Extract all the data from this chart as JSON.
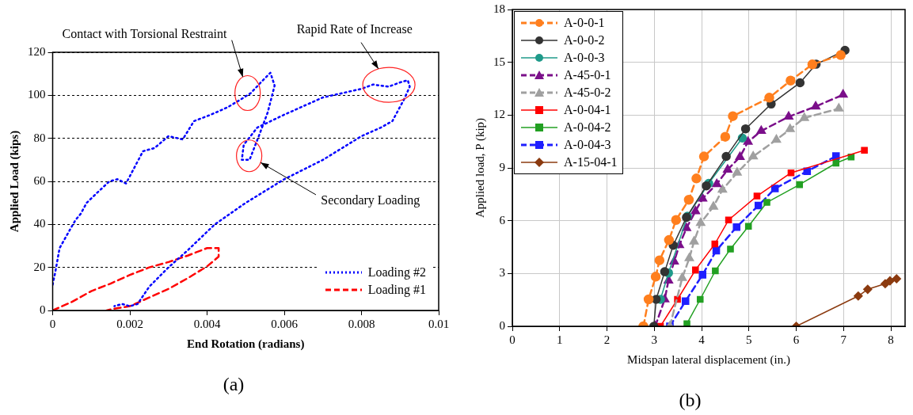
{
  "chart_data": [
    {
      "type": "line",
      "xlabel": "End Rotation (radians)",
      "ylabel": "Applied Load (kips)",
      "xlim": [
        0,
        0.01
      ],
      "ylim": [
        0,
        120
      ],
      "xticks": [
        0,
        0.002,
        0.004,
        0.006,
        0.008,
        0.01
      ],
      "yticks": [
        0,
        20,
        40,
        60,
        80,
        100,
        120
      ],
      "grid": "y",
      "legend": "bottom right",
      "marker": "none",
      "series": [
        {
          "name": "Loading #2",
          "color": "#0000ff",
          "line_style": "dotted",
          "x": [
            0,
            7e-05,
            0.00018,
            0.0004,
            0.00059,
            0.00073,
            0.00088,
            0.00117,
            0.00147,
            0.00168,
            0.0019,
            0.00212,
            0.00234,
            0.00264,
            0.003,
            0.00337,
            0.00366,
            0.0041,
            0.00454,
            0.00491,
            0.00513,
            0.00542,
            0.00564,
            0.00575,
            0.00557,
            0.00535,
            0.0051,
            0.0049,
            0.00495,
            0.0053,
            0.006,
            0.0065,
            0.007,
            0.0075,
            0.008,
            0.0083,
            0.0087,
            0.009,
            0.0092,
            0.00925,
            0.0091,
            0.0088,
            0.0085,
            0.008,
            0.007,
            0.006,
            0.005,
            0.0042,
            0.0035,
            0.003,
            0.0025,
            0.0022,
            0.002,
            0.0018,
            0.0016
          ],
          "values": [
            12,
            18,
            29,
            36,
            42,
            45,
            50,
            55,
            60,
            61,
            59,
            66.5,
            74,
            75.5,
            81,
            79.5,
            88,
            91,
            94.5,
            98.5,
            101,
            106.5,
            110.5,
            104.5,
            92,
            81.5,
            70,
            70,
            77,
            85,
            91,
            95,
            99,
            101,
            103,
            105,
            104,
            106,
            107,
            104,
            98,
            88,
            85,
            81,
            70,
            61,
            50,
            40,
            28,
            20,
            11,
            3,
            2,
            3,
            2
          ]
        },
        {
          "name": "Loading #1",
          "color": "#ff0000",
          "line_style": "dashed",
          "x": [
            0,
            0.0005,
            0.001,
            0.0015,
            0.002,
            0.0025,
            0.003,
            0.0035,
            0.004,
            0.0043,
            0.0043,
            0.004,
            0.0035,
            0.003,
            0.0025,
            0.002,
            0.0015,
            0.0014
          ],
          "values": [
            0,
            4,
            9,
            12.5,
            16.5,
            20,
            22.5,
            25.5,
            29,
            29,
            25,
            20.5,
            15,
            10,
            6,
            2,
            0.5,
            0
          ]
        }
      ],
      "annotations": [
        "Contact with Torsional Restraint",
        "Rapid Rate of Increase",
        "Secondary Loading",
        "(a)"
      ]
    },
    {
      "type": "line",
      "xlabel": "Midspan lateral displacement (in.)",
      "ylabel": "Applied load, P (kip)",
      "xlim": [
        0,
        8.3
      ],
      "ylim": [
        0,
        18
      ],
      "xticks": [
        0,
        1,
        2,
        3,
        4,
        5,
        6,
        7,
        8
      ],
      "yticks": [
        0,
        3,
        6,
        9,
        12,
        15,
        18
      ],
      "grid": true,
      "legend": "top left",
      "series": [
        {
          "name": "A-0-0-1",
          "color": "#ff7f1e",
          "line_style": "dashed",
          "marker": "circle",
          "x": [
            2.77,
            2.88,
            3.03,
            3.11,
            3.31,
            3.46,
            3.73,
            3.89,
            4.05,
            4.5,
            4.66,
            5.43,
            5.88,
            6.34,
            6.94
          ],
          "values": [
            0,
            1.53,
            2.82,
            3.75,
            4.9,
            6.04,
            7.19,
            8.4,
            9.65,
            10.77,
            11.94,
            12.99,
            13.96,
            14.88,
            15.41
          ]
        },
        {
          "name": "A-0-0-2",
          "color": "#333333",
          "line_style": "solid",
          "marker": "circle",
          "x": [
            2.99,
            3.04,
            3.22,
            3.4,
            3.68,
            4.1,
            4.52,
            4.93,
            5.47,
            6.08,
            6.42,
            7.03
          ],
          "values": [
            0,
            1.53,
            3.1,
            4.6,
            6.19,
            7.98,
            9.65,
            11.22,
            12.63,
            13.84,
            14.89,
            15.68
          ]
        },
        {
          "name": "A-0-0-3",
          "color": "#1f9a8a",
          "line_style": "solid",
          "marker": "circle",
          "x": [
            3.13,
            3.3,
            3.7,
            4.15,
            4.86
          ],
          "values": [
            1.53,
            3.03,
            6.25,
            8.12,
            10.7
          ]
        },
        {
          "name": "A-45-0-1",
          "color": "#7b0f8a",
          "line_style": "dashed",
          "marker": "triangle",
          "x": [
            3.02,
            3.22,
            3.3,
            3.42,
            3.53,
            3.68,
            3.87,
            4.02,
            4.32,
            4.55,
            4.81,
            4.98,
            5.26,
            5.84,
            6.41,
            6.99
          ],
          "values": [
            0,
            1.53,
            2.6,
            3.68,
            4.61,
            5.58,
            6.54,
            7.26,
            8.08,
            8.9,
            9.62,
            10.48,
            11.1,
            11.91,
            12.49,
            13.16
          ]
        },
        {
          "name": "A-45-0-2",
          "color": "#a0a0a0",
          "line_style": "dashed",
          "marker": "triangle",
          "x": [
            3.33,
            3.59,
            3.74,
            3.84,
            3.98,
            4.25,
            4.44,
            4.75,
            5.09,
            5.58,
            5.87,
            6.17,
            6.9
          ],
          "values": [
            0,
            2.75,
            3.87,
            4.82,
            5.87,
            6.8,
            7.76,
            8.73,
            9.65,
            10.6,
            11.2,
            11.84,
            12.37
          ]
        },
        {
          "name": "A-0-04-1",
          "color": "#ff0000",
          "line_style": "solid",
          "marker": "square",
          "x": [
            3.13,
            3.49,
            3.87,
            4.28,
            4.57,
            5.17,
            5.89,
            7.44
          ],
          "values": [
            0,
            1.53,
            3.2,
            4.68,
            6.04,
            7.4,
            8.72,
            10
          ]
        },
        {
          "name": "A-0-04-2",
          "color": "#22a022",
          "line_style": "solid",
          "marker": "square",
          "x": [
            3.69,
            3.97,
            4.29,
            4.61,
            4.99,
            5.38,
            6.07,
            6.84,
            7.16
          ],
          "values": [
            0.15,
            1.53,
            3.15,
            4.39,
            5.68,
            7.04,
            8.05,
            9.27,
            9.62
          ]
        },
        {
          "name": "A-0-04-3",
          "color": "#1f1fff",
          "line_style": "dashed",
          "marker": "square",
          "x": [
            3.33,
            3.66,
            4.02,
            4.31,
            4.74,
            5.2,
            5.55,
            6.23,
            6.84
          ],
          "values": [
            0,
            1.43,
            2.93,
            4.3,
            5.64,
            6.86,
            7.83,
            8.81,
            9.67
          ]
        },
        {
          "name": "A-15-04-1",
          "color": "#8b3a0f",
          "line_style": "solid",
          "marker": "diamond",
          "x": [
            6,
            7.31,
            7.51,
            7.88,
            7.98,
            8.12
          ],
          "values": [
            0,
            1.72,
            2.1,
            2.42,
            2.58,
            2.7
          ]
        }
      ],
      "annotations": [
        "(b)"
      ]
    }
  ]
}
